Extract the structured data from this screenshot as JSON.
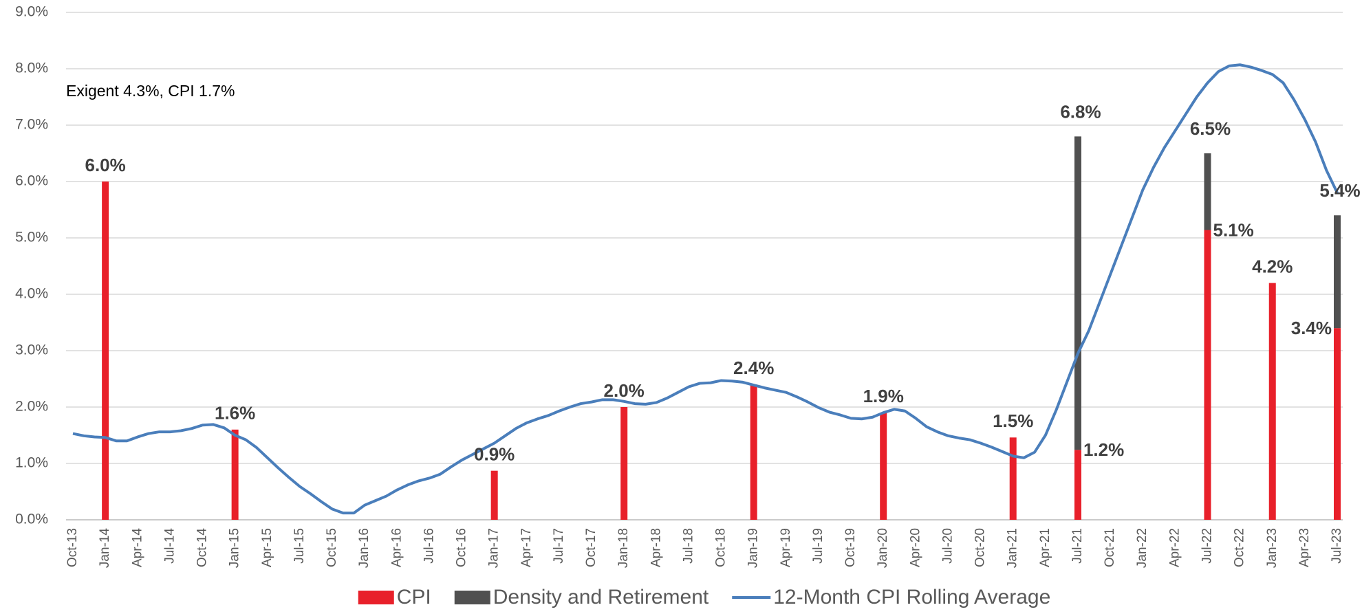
{
  "chart_data": {
    "type": "bar",
    "annotation": "Exigent 4.3%, CPI 1.7%",
    "ylim": [
      0,
      9
    ],
    "yticks": [
      {
        "value": 0,
        "label": "0.0%"
      },
      {
        "value": 1,
        "label": "1.0%"
      },
      {
        "value": 2,
        "label": "2.0%"
      },
      {
        "value": 3,
        "label": "3.0%"
      },
      {
        "value": 4,
        "label": "4.0%"
      },
      {
        "value": 5,
        "label": "5.0%"
      },
      {
        "value": 6,
        "label": "6.0%"
      },
      {
        "value": 7,
        "label": "7.0%"
      },
      {
        "value": 8,
        "label": "8.0%"
      },
      {
        "value": 9,
        "label": "9.0%"
      }
    ],
    "grid": true,
    "legend": "bottom",
    "categories": [
      "Oct-13",
      null,
      null,
      "Jan-14",
      null,
      null,
      "Apr-14",
      null,
      null,
      "Jul-14",
      null,
      null,
      "Oct-14",
      null,
      null,
      "Jan-15",
      null,
      null,
      "Apr-15",
      null,
      null,
      "Jul-15",
      null,
      null,
      "Oct-15",
      null,
      null,
      "Jan-16",
      null,
      null,
      "Apr-16",
      null,
      null,
      "Jul-16",
      null,
      null,
      "Oct-16",
      null,
      null,
      "Jan-17",
      null,
      null,
      "Apr-17",
      null,
      null,
      "Jul-17",
      null,
      null,
      "Oct-17",
      null,
      null,
      "Jan-18",
      null,
      null,
      "Apr-18",
      null,
      null,
      "Jul-18",
      null,
      null,
      "Oct-18",
      null,
      null,
      "Jan-19",
      null,
      null,
      "Apr-19",
      null,
      null,
      "Jul-19",
      null,
      null,
      "Oct-19",
      null,
      null,
      "Jan-20",
      null,
      null,
      "Apr-20",
      null,
      null,
      "Jul-20",
      null,
      null,
      "Oct-20",
      null,
      null,
      "Jan-21",
      null,
      null,
      "Apr-21",
      null,
      null,
      "Jul-21",
      null,
      null,
      "Oct-21",
      null,
      null,
      "Jan-22",
      null,
      null,
      "Apr-22",
      null,
      null,
      "Jul-22",
      null,
      null,
      "Oct-22",
      null,
      null,
      "Jan-23",
      null,
      null,
      "Apr-23",
      null,
      null,
      "Jul-23"
    ],
    "series": [
      {
        "name": "CPI",
        "type": "bar",
        "color": "#e8202a",
        "values": [
          null,
          null,
          null,
          6.0,
          null,
          null,
          null,
          null,
          null,
          null,
          null,
          null,
          null,
          null,
          null,
          1.6,
          null,
          null,
          null,
          null,
          null,
          null,
          null,
          null,
          null,
          null,
          null,
          null,
          null,
          null,
          null,
          null,
          null,
          null,
          null,
          null,
          null,
          null,
          null,
          0.87,
          null,
          null,
          null,
          null,
          null,
          null,
          null,
          null,
          null,
          null,
          null,
          2.0,
          null,
          null,
          null,
          null,
          null,
          null,
          null,
          null,
          null,
          null,
          null,
          2.4,
          null,
          null,
          null,
          null,
          null,
          null,
          null,
          null,
          null,
          null,
          null,
          1.9,
          null,
          null,
          null,
          null,
          null,
          null,
          null,
          null,
          null,
          null,
          null,
          1.46,
          null,
          null,
          null,
          null,
          null,
          1.24,
          null,
          null,
          null,
          null,
          null,
          null,
          null,
          null,
          null,
          null,
          null,
          5.14,
          null,
          null,
          null,
          null,
          null,
          4.2,
          null,
          null,
          null,
          null,
          null,
          3.4
        ],
        "value_labels": [
          null,
          null,
          null,
          "6.0%",
          null,
          null,
          null,
          null,
          null,
          null,
          null,
          null,
          null,
          null,
          null,
          "1.6%",
          null,
          null,
          null,
          null,
          null,
          null,
          null,
          null,
          null,
          null,
          null,
          null,
          null,
          null,
          null,
          null,
          null,
          null,
          null,
          null,
          null,
          null,
          null,
          "0.9%",
          null,
          null,
          null,
          null,
          null,
          null,
          null,
          null,
          null,
          null,
          null,
          "2.0%",
          null,
          null,
          null,
          null,
          null,
          null,
          null,
          null,
          null,
          null,
          null,
          "2.4%",
          null,
          null,
          null,
          null,
          null,
          null,
          null,
          null,
          null,
          null,
          null,
          "1.9%",
          null,
          null,
          null,
          null,
          null,
          null,
          null,
          null,
          null,
          null,
          null,
          "1.5%",
          null,
          null,
          null,
          null,
          null,
          "1.2%",
          null,
          null,
          null,
          null,
          null,
          null,
          null,
          null,
          null,
          null,
          null,
          "5.1%",
          null,
          null,
          null,
          null,
          null,
          "4.2%",
          null,
          null,
          null,
          null,
          null,
          "3.4%"
        ]
      },
      {
        "name": "Density and Retirement",
        "type": "bar",
        "color": "#505050",
        "values": [
          null,
          null,
          null,
          null,
          null,
          null,
          null,
          null,
          null,
          null,
          null,
          null,
          null,
          null,
          null,
          null,
          null,
          null,
          null,
          null,
          null,
          null,
          null,
          null,
          null,
          null,
          null,
          null,
          null,
          null,
          null,
          null,
          null,
          null,
          null,
          null,
          null,
          null,
          null,
          null,
          null,
          null,
          null,
          null,
          null,
          null,
          null,
          null,
          null,
          null,
          null,
          null,
          null,
          null,
          null,
          null,
          null,
          null,
          null,
          null,
          null,
          null,
          null,
          null,
          null,
          null,
          null,
          null,
          null,
          null,
          null,
          null,
          null,
          null,
          null,
          null,
          null,
          null,
          null,
          null,
          null,
          null,
          null,
          null,
          null,
          null,
          null,
          null,
          null,
          null,
          null,
          null,
          null,
          5.56,
          null,
          null,
          null,
          null,
          null,
          null,
          null,
          null,
          null,
          null,
          null,
          1.36,
          null,
          null,
          null,
          null,
          null,
          null,
          null,
          null,
          null,
          null,
          null,
          2.0
        ]
      },
      {
        "name": "12-Month CPI Rolling Average",
        "type": "line",
        "color": "#4a7ebb",
        "values": [
          1.53,
          1.49,
          1.47,
          1.46,
          1.4,
          1.4,
          1.47,
          1.53,
          1.56,
          1.56,
          1.58,
          1.62,
          1.68,
          1.69,
          1.63,
          1.5,
          1.42,
          1.28,
          1.1,
          0.92,
          0.75,
          0.59,
          0.46,
          0.32,
          0.19,
          0.12,
          0.12,
          0.26,
          0.34,
          0.42,
          0.53,
          0.62,
          0.69,
          0.74,
          0.81,
          0.94,
          1.06,
          1.16,
          1.26,
          1.36,
          1.49,
          1.62,
          1.72,
          1.79,
          1.85,
          1.93,
          2.0,
          2.06,
          2.09,
          2.13,
          2.13,
          2.1,
          2.06,
          2.05,
          2.08,
          2.16,
          2.26,
          2.36,
          2.42,
          2.43,
          2.47,
          2.46,
          2.44,
          2.39,
          2.34,
          2.3,
          2.26,
          2.18,
          2.09,
          1.99,
          1.91,
          1.86,
          1.8,
          1.79,
          1.82,
          1.9,
          1.96,
          1.93,
          1.8,
          1.65,
          1.56,
          1.49,
          1.45,
          1.42,
          1.36,
          1.29,
          1.21,
          1.13,
          1.1,
          1.2,
          1.5,
          1.95,
          2.45,
          2.95,
          3.35,
          3.85,
          4.35,
          4.85,
          5.35,
          5.85,
          6.25,
          6.6,
          6.9,
          7.2,
          7.5,
          7.75,
          7.95,
          8.05,
          8.07,
          8.03,
          7.97,
          7.9,
          7.75,
          7.45,
          7.1,
          6.7,
          6.2,
          5.8
        ]
      }
    ],
    "total_labels": [
      null,
      null,
      null,
      null,
      null,
      null,
      null,
      null,
      null,
      null,
      null,
      null,
      null,
      null,
      null,
      null,
      null,
      null,
      null,
      null,
      null,
      null,
      null,
      null,
      null,
      null,
      null,
      null,
      null,
      null,
      null,
      null,
      null,
      null,
      null,
      null,
      null,
      null,
      null,
      null,
      null,
      null,
      null,
      null,
      null,
      null,
      null,
      null,
      null,
      null,
      null,
      null,
      null,
      null,
      null,
      null,
      null,
      null,
      null,
      null,
      null,
      null,
      null,
      null,
      null,
      null,
      null,
      null,
      null,
      null,
      null,
      null,
      null,
      null,
      null,
      null,
      null,
      null,
      null,
      null,
      null,
      null,
      null,
      null,
      null,
      null,
      null,
      null,
      null,
      null,
      null,
      null,
      null,
      "6.8%",
      null,
      null,
      null,
      null,
      null,
      null,
      null,
      null,
      null,
      null,
      null,
      "6.5%",
      null,
      null,
      null,
      null,
      null,
      null,
      null,
      null,
      null,
      null,
      null,
      "5.4%"
    ]
  }
}
